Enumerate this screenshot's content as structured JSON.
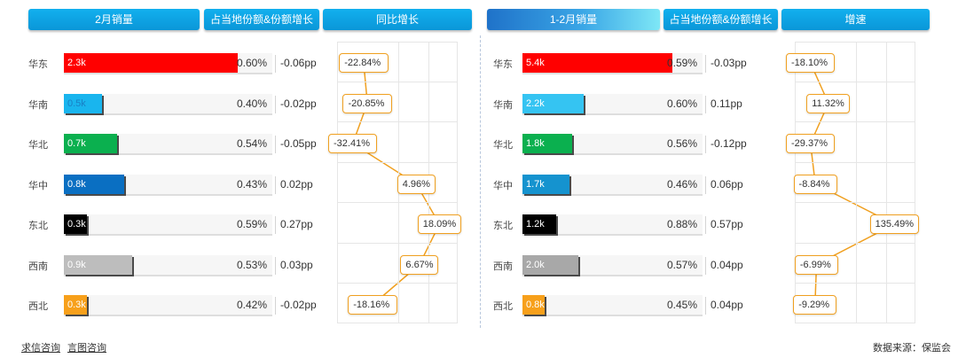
{
  "headers": {
    "left": [
      "2月销量",
      "占当地份额&份额增长",
      "同比增长"
    ],
    "right": [
      "1-2月销量",
      "占当地份额&份额增长",
      "增速"
    ]
  },
  "footer": {
    "links": [
      "求信咨询",
      "言图咨询"
    ],
    "source": "数据来源：保监会"
  },
  "chart_data": [
    {
      "type": "bar",
      "title": "2月销量",
      "categories": [
        "华东",
        "华南",
        "华北",
        "华中",
        "东北",
        "西南",
        "西北"
      ],
      "values": [
        2.3,
        0.5,
        0.7,
        0.8,
        0.3,
        0.9,
        0.3
      ],
      "value_labels": [
        "2.3k",
        "0.5k",
        "0.7k",
        "0.8k",
        "0.3k",
        "0.9k",
        "0.3k"
      ],
      "share": [
        "0.60%",
        "0.40%",
        "0.54%",
        "0.43%",
        "0.59%",
        "0.53%",
        "0.42%"
      ],
      "share_change": [
        "-0.06pp",
        "-0.02pp",
        "-0.05pp",
        "0.02pp",
        "0.27pp",
        "0.03pp",
        "-0.02pp"
      ],
      "growth_values": [
        -22.84,
        -20.85,
        -32.41,
        4.96,
        18.09,
        6.67,
        -18.16
      ],
      "growth_labels": [
        "-22.84%",
        "-20.85%",
        "-32.41%",
        "4.96%",
        "18.09%",
        "6.67%",
        "-18.16%"
      ],
      "growth_range": [
        -35,
        25
      ],
      "colors": [
        "#ff0000",
        "#19b5ee",
        "#0bb04f",
        "#0a6fc2",
        "#000000",
        "#bdbdbd",
        "#f7a01b"
      ]
    },
    {
      "type": "bar",
      "title": "1-2月销量",
      "categories": [
        "华东",
        "华南",
        "华北",
        "华中",
        "东北",
        "西南",
        "西北"
      ],
      "values": [
        5.4,
        2.2,
        1.8,
        1.7,
        1.2,
        2.0,
        0.8
      ],
      "value_labels": [
        "5.4k",
        "2.2k",
        "1.8k",
        "1.7k",
        "1.2k",
        "2.0k",
        "0.8k"
      ],
      "share": [
        "0.59%",
        "0.60%",
        "0.56%",
        "0.46%",
        "0.88%",
        "0.57%",
        "0.45%"
      ],
      "share_change": [
        "-0.03pp",
        "0.11pp",
        "-0.12pp",
        "0.06pp",
        "0.57pp",
        "0.04pp",
        "0.04pp"
      ],
      "growth_values": [
        -18.1,
        11.32,
        -29.37,
        -8.84,
        135.49,
        -6.99,
        -9.29
      ],
      "growth_labels": [
        "-18.10%",
        "11.32%",
        "-29.37%",
        "-8.84%",
        "135.49%",
        "-6.99%",
        "-9.29%"
      ],
      "growth_range": [
        -35,
        140
      ],
      "colors": [
        "#ff0000",
        "#35c4f2",
        "#0bb04f",
        "#1593cf",
        "#000000",
        "#a8a8a8",
        "#f7a01b"
      ]
    }
  ]
}
